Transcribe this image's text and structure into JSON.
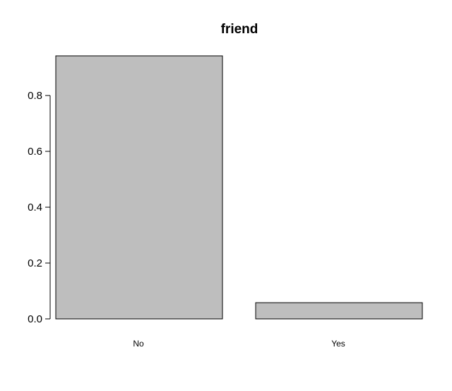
{
  "chart_data": {
    "type": "bar",
    "title": "friend",
    "categories": [
      "No",
      "Yes"
    ],
    "values": [
      0.942,
      0.058
    ],
    "xlabel": "",
    "ylabel": "",
    "ylim": [
      0,
      0.942
    ],
    "yticks": [
      0.0,
      0.2,
      0.4,
      0.6,
      0.8
    ],
    "ytick_labels": [
      "0.0",
      "0.2",
      "0.4",
      "0.6",
      "0.8"
    ],
    "grid": false,
    "legend": "none",
    "colors": {
      "bar_fill": "#bebebe",
      "bar_stroke": "#000000",
      "background": "#ffffff"
    }
  }
}
